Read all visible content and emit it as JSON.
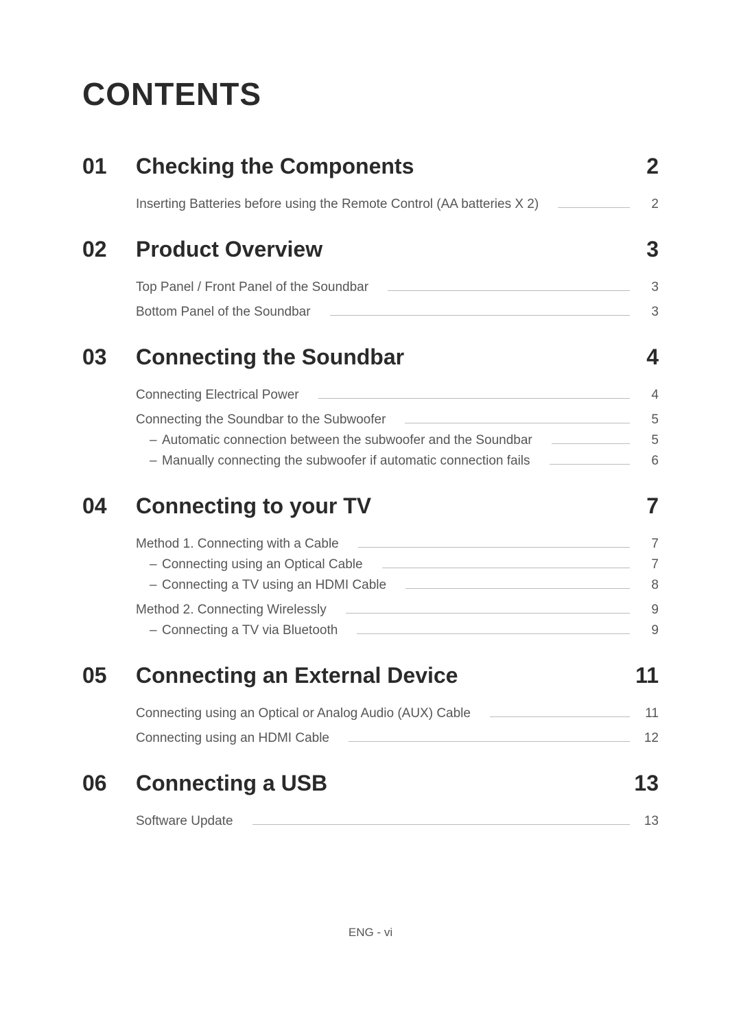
{
  "title": "CONTENTS",
  "footer": "ENG - vi",
  "colors": {
    "text_primary": "#2a2a2a",
    "text_secondary": "#555555",
    "line": "#bbbbbb",
    "background": "#ffffff"
  },
  "typography": {
    "title_fontsize": 46,
    "section_fontsize": 32,
    "entry_fontsize": 19,
    "footer_fontsize": 17
  },
  "sections": [
    {
      "num": "01",
      "title": "Checking the Components",
      "page": "2",
      "entries": [
        {
          "text": "Inserting Batteries before using the Remote Control (AA batteries X 2)",
          "page": "2",
          "sub": false,
          "group_start": false
        }
      ]
    },
    {
      "num": "02",
      "title": "Product Overview",
      "page": "3",
      "entries": [
        {
          "text": "Top Panel / Front Panel of the Soundbar",
          "page": "3",
          "sub": false,
          "group_start": false
        },
        {
          "text": "Bottom Panel of the Soundbar",
          "page": "3",
          "sub": false,
          "group_start": true
        }
      ]
    },
    {
      "num": "03",
      "title": "Connecting the Soundbar",
      "page": "4",
      "entries": [
        {
          "text": "Connecting Electrical Power",
          "page": "4",
          "sub": false,
          "group_start": false
        },
        {
          "text": "Connecting the Soundbar to the Subwoofer",
          "page": "5",
          "sub": false,
          "group_start": true
        },
        {
          "text": "Automatic connection between the subwoofer and the Soundbar",
          "page": "5",
          "sub": true,
          "group_start": false
        },
        {
          "text": "Manually connecting the subwoofer if automatic connection fails",
          "page": "6",
          "sub": true,
          "group_start": false
        }
      ]
    },
    {
      "num": "04",
      "title": "Connecting to your TV",
      "page": "7",
      "entries": [
        {
          "text": "Method 1. Connecting with a Cable",
          "page": "7",
          "sub": false,
          "group_start": false
        },
        {
          "text": "Connecting using an Optical Cable",
          "page": "7",
          "sub": true,
          "group_start": false
        },
        {
          "text": "Connecting a TV using an HDMI Cable",
          "page": "8",
          "sub": true,
          "group_start": false
        },
        {
          "text": "Method 2. Connecting Wirelessly",
          "page": "9",
          "sub": false,
          "group_start": true
        },
        {
          "text": "Connecting a TV via Bluetooth",
          "page": "9",
          "sub": true,
          "group_start": false
        }
      ]
    },
    {
      "num": "05",
      "title": "Connecting an External Device",
      "page": "11",
      "entries": [
        {
          "text": "Connecting using an Optical or Analog Audio (AUX) Cable",
          "page": "11",
          "sub": false,
          "group_start": false
        },
        {
          "text": "Connecting using an HDMI Cable",
          "page": "12",
          "sub": false,
          "group_start": true
        }
      ]
    },
    {
      "num": "06",
      "title": "Connecting a USB",
      "page": "13",
      "entries": [
        {
          "text": "Software Update",
          "page": "13",
          "sub": false,
          "group_start": false
        }
      ]
    }
  ]
}
